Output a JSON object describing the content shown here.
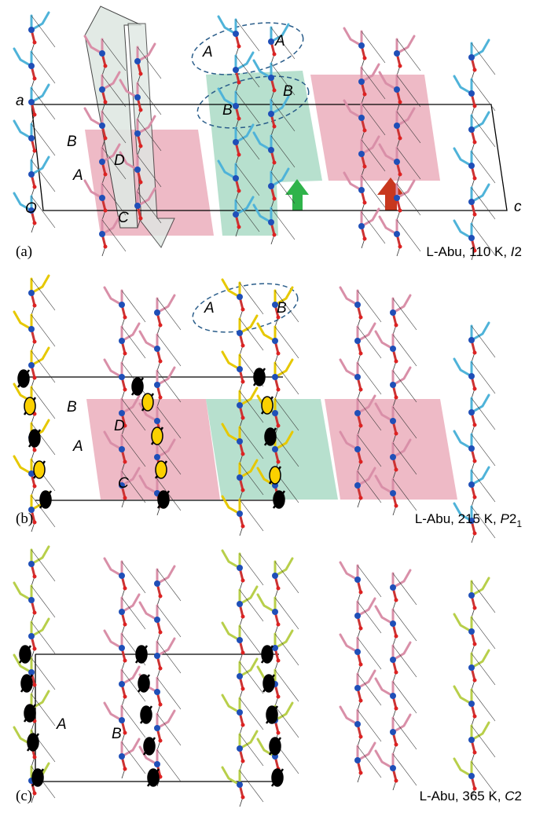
{
  "panels": [
    {
      "label": "(a)",
      "caption": "L-Abu, 110 K,",
      "space_group": "I",
      "space_group_number": "2",
      "space_group_subscript": "",
      "letters": [
        "A",
        "A",
        "B",
        "B",
        "a",
        "B",
        "D",
        "A",
        "O",
        "C",
        "c"
      ]
    },
    {
      "label": "(b)",
      "caption": "L-Abu, 215 K,",
      "space_group": "P",
      "space_group_number": "2",
      "space_group_subscript": "1",
      "letters": [
        "A",
        "B",
        "B",
        "D",
        "A",
        "C"
      ]
    },
    {
      "label": "(c)",
      "caption": "L-Abu, 365 K,",
      "space_group": "C",
      "space_group_number": "2",
      "space_group_subscript": "",
      "letters": [
        "A",
        "B"
      ]
    }
  ]
}
